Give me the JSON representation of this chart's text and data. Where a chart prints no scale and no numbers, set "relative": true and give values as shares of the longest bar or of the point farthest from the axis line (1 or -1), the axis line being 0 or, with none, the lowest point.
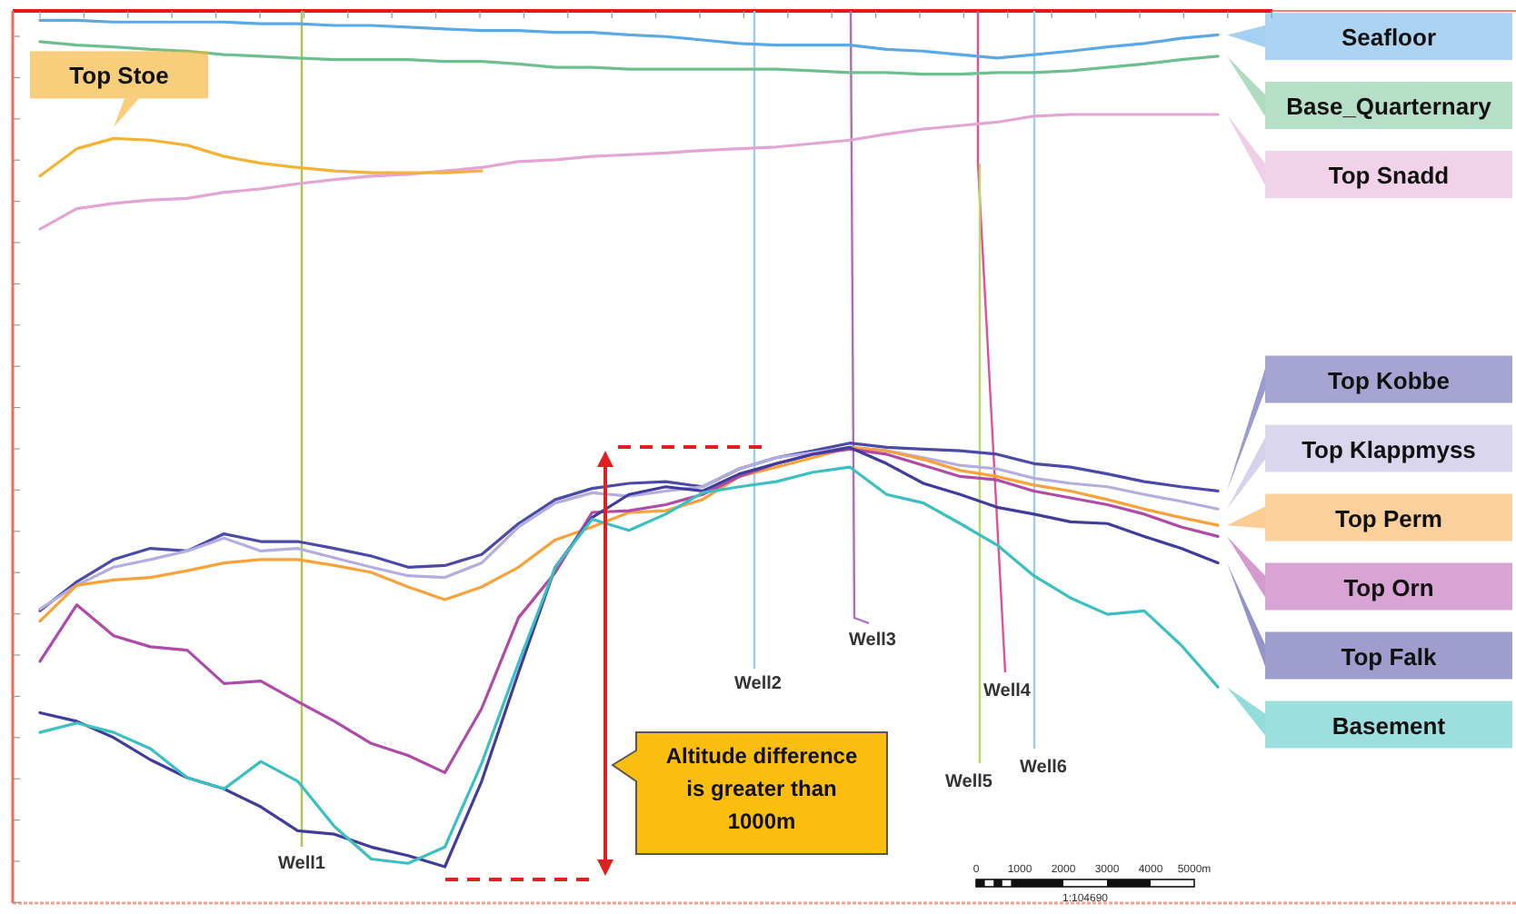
{
  "chart_data": {
    "type": "line",
    "relative": true,
    "legend": "right",
    "line_style": "solid",
    "categories": [
      null,
      null,
      null,
      null,
      null,
      null,
      null,
      null,
      null,
      null,
      null,
      null,
      null,
      null,
      null,
      null,
      null,
      null,
      null,
      null,
      null,
      null,
      null,
      null,
      null,
      null,
      null,
      null,
      null,
      null,
      null,
      null,
      null
    ],
    "series": [
      {
        "name": "Seafloor",
        "color": "#5aa9e6",
        "values": [
          -0.011,
          -0.011,
          -0.013,
          -0.013,
          -0.013,
          -0.013,
          -0.015,
          -0.015,
          -0.017,
          -0.017,
          -0.019,
          -0.021,
          -0.023,
          -0.023,
          -0.025,
          -0.025,
          -0.028,
          -0.03,
          -0.034,
          -0.038,
          -0.04,
          -0.04,
          -0.04,
          -0.045,
          -0.047,
          -0.051,
          -0.055,
          -0.051,
          -0.047,
          -0.042,
          -0.038,
          -0.032,
          -0.028
        ]
      },
      {
        "name": "Base_Quarternary",
        "color": "#6dbf8f",
        "values": [
          -0.036,
          -0.04,
          -0.042,
          -0.045,
          -0.047,
          -0.051,
          -0.053,
          -0.055,
          -0.057,
          -0.057,
          -0.057,
          -0.059,
          -0.059,
          -0.062,
          -0.066,
          -0.066,
          -0.068,
          -0.068,
          -0.068,
          -0.068,
          -0.068,
          -0.07,
          -0.072,
          -0.072,
          -0.074,
          -0.074,
          -0.072,
          -0.072,
          -0.07,
          -0.066,
          -0.062,
          -0.057,
          -0.053
        ]
      },
      {
        "name": "Top Snadd",
        "color": "#e3a6d4",
        "values": [
          -0.255,
          -0.231,
          -0.225,
          -0.221,
          -0.219,
          -0.212,
          -0.208,
          -0.202,
          -0.197,
          -0.193,
          -0.191,
          -0.187,
          -0.183,
          -0.176,
          -0.174,
          -0.17,
          -0.168,
          -0.166,
          -0.163,
          -0.161,
          -0.159,
          -0.155,
          -0.151,
          -0.144,
          -0.138,
          -0.134,
          -0.13,
          -0.123,
          -0.121,
          -0.121,
          -0.121,
          -0.121,
          -0.121
        ]
      },
      {
        "name": "Top Stoe",
        "color": "#f5b335",
        "values": [
          -0.193,
          -0.161,
          -0.149,
          -0.151,
          -0.157,
          -0.17,
          -0.178,
          -0.183,
          -0.187,
          -0.189,
          -0.189,
          -0.189,
          -0.187,
          null,
          null,
          null,
          null,
          null,
          null,
          null,
          null,
          null,
          null,
          null,
          null,
          null,
          null,
          null,
          null,
          null,
          null,
          null,
          null
        ]
      },
      {
        "name": "Top Kobbe",
        "color": "#4b4aa8",
        "values": [
          -0.701,
          -0.667,
          -0.641,
          -0.628,
          -0.631,
          -0.611,
          -0.62,
          -0.62,
          -0.628,
          -0.637,
          -0.65,
          -0.648,
          -0.635,
          -0.599,
          -0.571,
          -0.558,
          -0.552,
          -0.55,
          -0.556,
          -0.535,
          -0.522,
          -0.514,
          -0.505,
          -0.51,
          -0.512,
          -0.514,
          -0.518,
          -0.529,
          -0.533,
          -0.541,
          -0.55,
          -0.556,
          -0.561
        ]
      },
      {
        "name": "Top Klappmyss",
        "color": "#b3aedd",
        "values": [
          -0.699,
          -0.671,
          -0.65,
          -0.641,
          -0.631,
          -0.616,
          -0.631,
          -0.628,
          -0.639,
          -0.65,
          -0.66,
          -0.662,
          -0.645,
          -0.603,
          -0.575,
          -0.563,
          -0.567,
          -0.561,
          -0.556,
          -0.535,
          -0.522,
          -0.516,
          -0.51,
          -0.514,
          -0.522,
          -0.531,
          -0.535,
          -0.546,
          -0.552,
          -0.556,
          -0.565,
          -0.573,
          -0.582
        ]
      },
      {
        "name": "Top Perm",
        "color": "#f7a23a",
        "values": [
          -0.713,
          -0.671,
          -0.665,
          -0.662,
          -0.654,
          -0.645,
          -0.641,
          -0.641,
          -0.648,
          -0.656,
          -0.673,
          -0.688,
          -0.673,
          -0.65,
          -0.618,
          -0.603,
          -0.586,
          -0.584,
          -0.571,
          -0.544,
          -0.533,
          -0.522,
          -0.51,
          -0.514,
          -0.524,
          -0.537,
          -0.544,
          -0.554,
          -0.561,
          -0.571,
          -0.582,
          -0.592,
          -0.601
        ]
      },
      {
        "name": "Top Orn",
        "color": "#b04aa8",
        "values": [
          -0.76,
          -0.694,
          -0.73,
          -0.743,
          -0.747,
          -0.786,
          -0.783,
          -0.807,
          -0.83,
          -0.856,
          -0.87,
          -0.89,
          -0.815,
          -0.709,
          -0.656,
          -0.586,
          -0.584,
          -0.577,
          -0.565,
          -0.544,
          -0.529,
          -0.518,
          -0.512,
          -0.518,
          -0.531,
          -0.544,
          -0.548,
          -0.561,
          -0.569,
          -0.577,
          -0.588,
          -0.603,
          -0.614
        ]
      },
      {
        "name": "Top Falk",
        "color": "#3f3c9c",
        "values": [
          -0.82,
          -0.83,
          -0.849,
          -0.875,
          -0.896,
          -0.909,
          -0.93,
          -0.958,
          -0.962,
          -0.977,
          -0.987,
          -1.0,
          -0.9,
          -0.773,
          -0.65,
          -0.592,
          -0.565,
          -0.556,
          -0.561,
          -0.541,
          -0.529,
          -0.518,
          -0.51,
          -0.529,
          -0.552,
          -0.565,
          -0.58,
          -0.588,
          -0.597,
          -0.599,
          -0.614,
          -0.628,
          -0.645
        ]
      },
      {
        "name": "Basement",
        "color": "#3cbfc0",
        "values": [
          -0.843,
          -0.832,
          -0.843,
          -0.862,
          -0.896,
          -0.909,
          -0.877,
          -0.9,
          -0.953,
          -0.991,
          -0.996,
          -0.977,
          -0.879,
          -0.762,
          -0.65,
          -0.594,
          -0.607,
          -0.588,
          -0.563,
          -0.556,
          -0.55,
          -0.539,
          -0.533,
          -0.565,
          -0.575,
          -0.599,
          -0.624,
          -0.66,
          -0.686,
          -0.705,
          -0.701,
          -0.741,
          -0.79
        ]
      }
    ],
    "annotations": [
      "Well1",
      "Well2",
      "Well3",
      "Well4",
      "Well5",
      "Well6",
      "Altitude difference is greater than 1000m",
      "0",
      "1000",
      "2000",
      "3000",
      "4000",
      "5000m",
      "1:104690"
    ]
  }
}
